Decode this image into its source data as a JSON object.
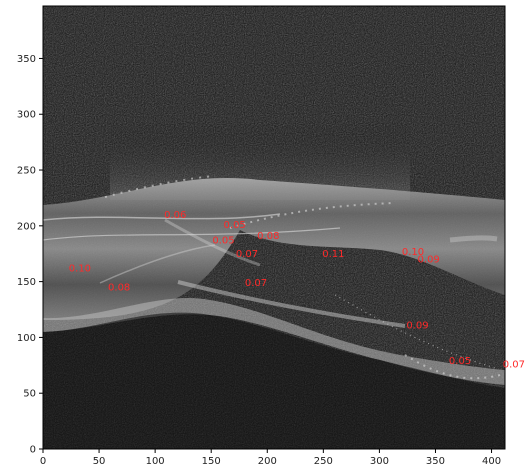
{
  "axes": {
    "x_ticks": [
      "0",
      "50",
      "100",
      "150",
      "200",
      "250",
      "300",
      "350",
      "400"
    ],
    "y_ticks": [
      "0",
      "50",
      "100",
      "150",
      "200",
      "250",
      "300",
      "350"
    ],
    "x_range": [
      0,
      412
    ],
    "y_range": [
      0,
      397
    ]
  },
  "annotations": [
    {
      "text": "0.06",
      "x": 108,
      "y": 207
    },
    {
      "text": "0.05",
      "x": 161,
      "y": 198
    },
    {
      "text": "0.05",
      "x": 151,
      "y": 184
    },
    {
      "text": "0.08",
      "x": 191,
      "y": 188
    },
    {
      "text": "0.07",
      "x": 172,
      "y": 172
    },
    {
      "text": "0.11",
      "x": 249,
      "y": 172
    },
    {
      "text": "0.10",
      "x": 320,
      "y": 174
    },
    {
      "text": "0.09",
      "x": 334,
      "y": 167
    },
    {
      "text": "0.10",
      "x": 23,
      "y": 159
    },
    {
      "text": "0.08",
      "x": 58,
      "y": 142
    },
    {
      "text": "0.07",
      "x": 180,
      "y": 146
    },
    {
      "text": "0.09",
      "x": 324,
      "y": 108
    },
    {
      "text": "0.05",
      "x": 362,
      "y": 76
    },
    {
      "text": "0.07",
      "x": 410,
      "y": 73
    }
  ],
  "colors": {
    "annotation": "#ff2a2a",
    "background": "#101010",
    "tissue": "#8a8a8a"
  }
}
